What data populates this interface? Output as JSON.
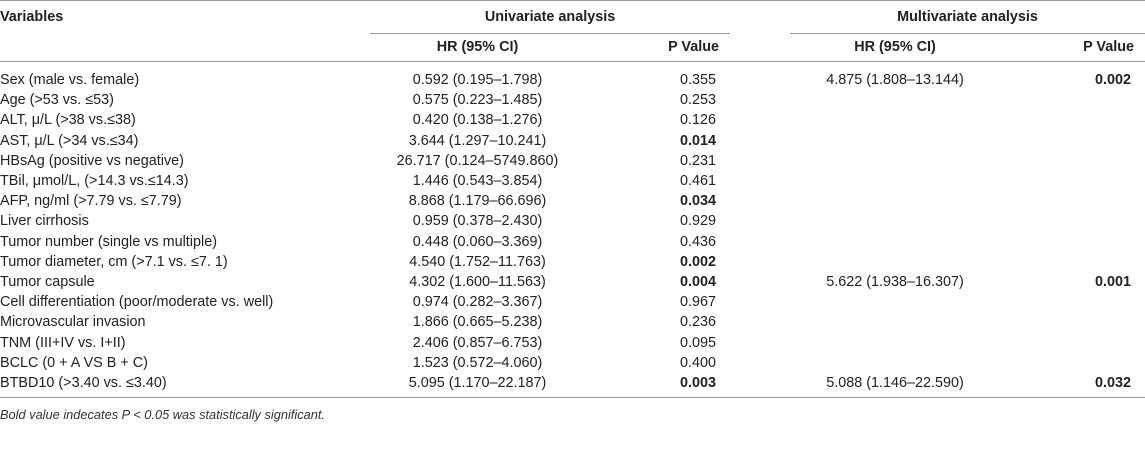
{
  "headers": {
    "variables": "Variables",
    "univariate": "Univariate analysis",
    "multivariate": "Multivariate analysis",
    "hr_uni": "HR (95% CI)",
    "p_uni": "P Value",
    "hr_multi": "HR (95% CI)",
    "p_multi": "P Value"
  },
  "rows": [
    {
      "variable": "Sex (male vs. female)",
      "uni_hr": "0.592 (0.195–1.798)",
      "uni_p": "0.355",
      "uni_bold": false,
      "multi_hr": "4.875 (1.808–13.144)",
      "multi_p": "0.002",
      "multi_bold": true
    },
    {
      "variable": "Age (>53 vs. ≤53)",
      "uni_hr": "0.575 (0.223–1.485)",
      "uni_p": "0.253",
      "uni_bold": false,
      "multi_hr": "",
      "multi_p": "",
      "multi_bold": false
    },
    {
      "variable": "ALT, μ/L (>38 vs.≤38)",
      "uni_hr": "0.420 (0.138–1.276)",
      "uni_p": "0.126",
      "uni_bold": false,
      "multi_hr": "",
      "multi_p": "",
      "multi_bold": false
    },
    {
      "variable": "AST, μ/L (>34 vs.≤34)",
      "uni_hr": "3.644 (1.297–10.241)",
      "uni_p": "0.014",
      "uni_bold": true,
      "multi_hr": "",
      "multi_p": "",
      "multi_bold": false
    },
    {
      "variable": "HBsAg (positive vs negative)",
      "uni_hr": "26.717 (0.124–5749.860)",
      "uni_p": "0.231",
      "uni_bold": false,
      "multi_hr": "",
      "multi_p": "",
      "multi_bold": false
    },
    {
      "variable": "TBil, μmol/L, (>14.3 vs.≤14.3)",
      "uni_hr": "1.446 (0.543–3.854)",
      "uni_p": "0.461",
      "uni_bold": false,
      "multi_hr": "",
      "multi_p": "",
      "multi_bold": false
    },
    {
      "variable": "AFP, ng/ml (>7.79 vs. ≤7.79)",
      "uni_hr": "8.868 (1.179–66.696)",
      "uni_p": "0.034",
      "uni_bold": true,
      "multi_hr": "",
      "multi_p": "",
      "multi_bold": false
    },
    {
      "variable": "Liver cirrhosis",
      "uni_hr": "0.959 (0.378–2.430)",
      "uni_p": "0.929",
      "uni_bold": false,
      "multi_hr": "",
      "multi_p": "",
      "multi_bold": false
    },
    {
      "variable": "Tumor number (single vs multiple)",
      "uni_hr": "0.448 (0.060–3.369)",
      "uni_p": "0.436",
      "uni_bold": false,
      "multi_hr": "",
      "multi_p": "",
      "multi_bold": false
    },
    {
      "variable": "Tumor diameter, cm (>7.1 vs. ≤7. 1)",
      "uni_hr": "4.540 (1.752–11.763)",
      "uni_p": "0.002",
      "uni_bold": true,
      "multi_hr": "",
      "multi_p": "",
      "multi_bold": false
    },
    {
      "variable": "Tumor capsule",
      "uni_hr": "4.302 (1.600–11.563)",
      "uni_p": "0.004",
      "uni_bold": true,
      "multi_hr": "5.622 (1.938–16.307)",
      "multi_p": "0.001",
      "multi_bold": true
    },
    {
      "variable": "Cell differentiation (poor/moderate vs. well)",
      "uni_hr": "0.974 (0.282–3.367)",
      "uni_p": "0.967",
      "uni_bold": false,
      "multi_hr": "",
      "multi_p": "",
      "multi_bold": false
    },
    {
      "variable": "Microvascular invasion",
      "uni_hr": "1.866 (0.665–5.238)",
      "uni_p": "0.236",
      "uni_bold": false,
      "multi_hr": "",
      "multi_p": "",
      "multi_bold": false
    },
    {
      "variable": "TNM (III+IV vs. I+II)",
      "uni_hr": "2.406 (0.857–6.753)",
      "uni_p": "0.095",
      "uni_bold": false,
      "multi_hr": "",
      "multi_p": "",
      "multi_bold": false
    },
    {
      "variable": "BCLC (0 + A VS B + C)",
      "uni_hr": "1.523 (0.572–4.060)",
      "uni_p": "0.400",
      "uni_bold": false,
      "multi_hr": "",
      "multi_p": "",
      "multi_bold": false
    },
    {
      "variable": "BTBD10 (>3.40 vs. ≤3.40)",
      "uni_hr": "5.095 (1.170–22.187)",
      "uni_p": "0.003",
      "uni_bold": true,
      "multi_hr": "5.088 (1.146–22.590)",
      "multi_p": "0.032",
      "multi_bold": true
    }
  ],
  "footnote": "Bold value indecates P < 0.05 was statistically significant."
}
